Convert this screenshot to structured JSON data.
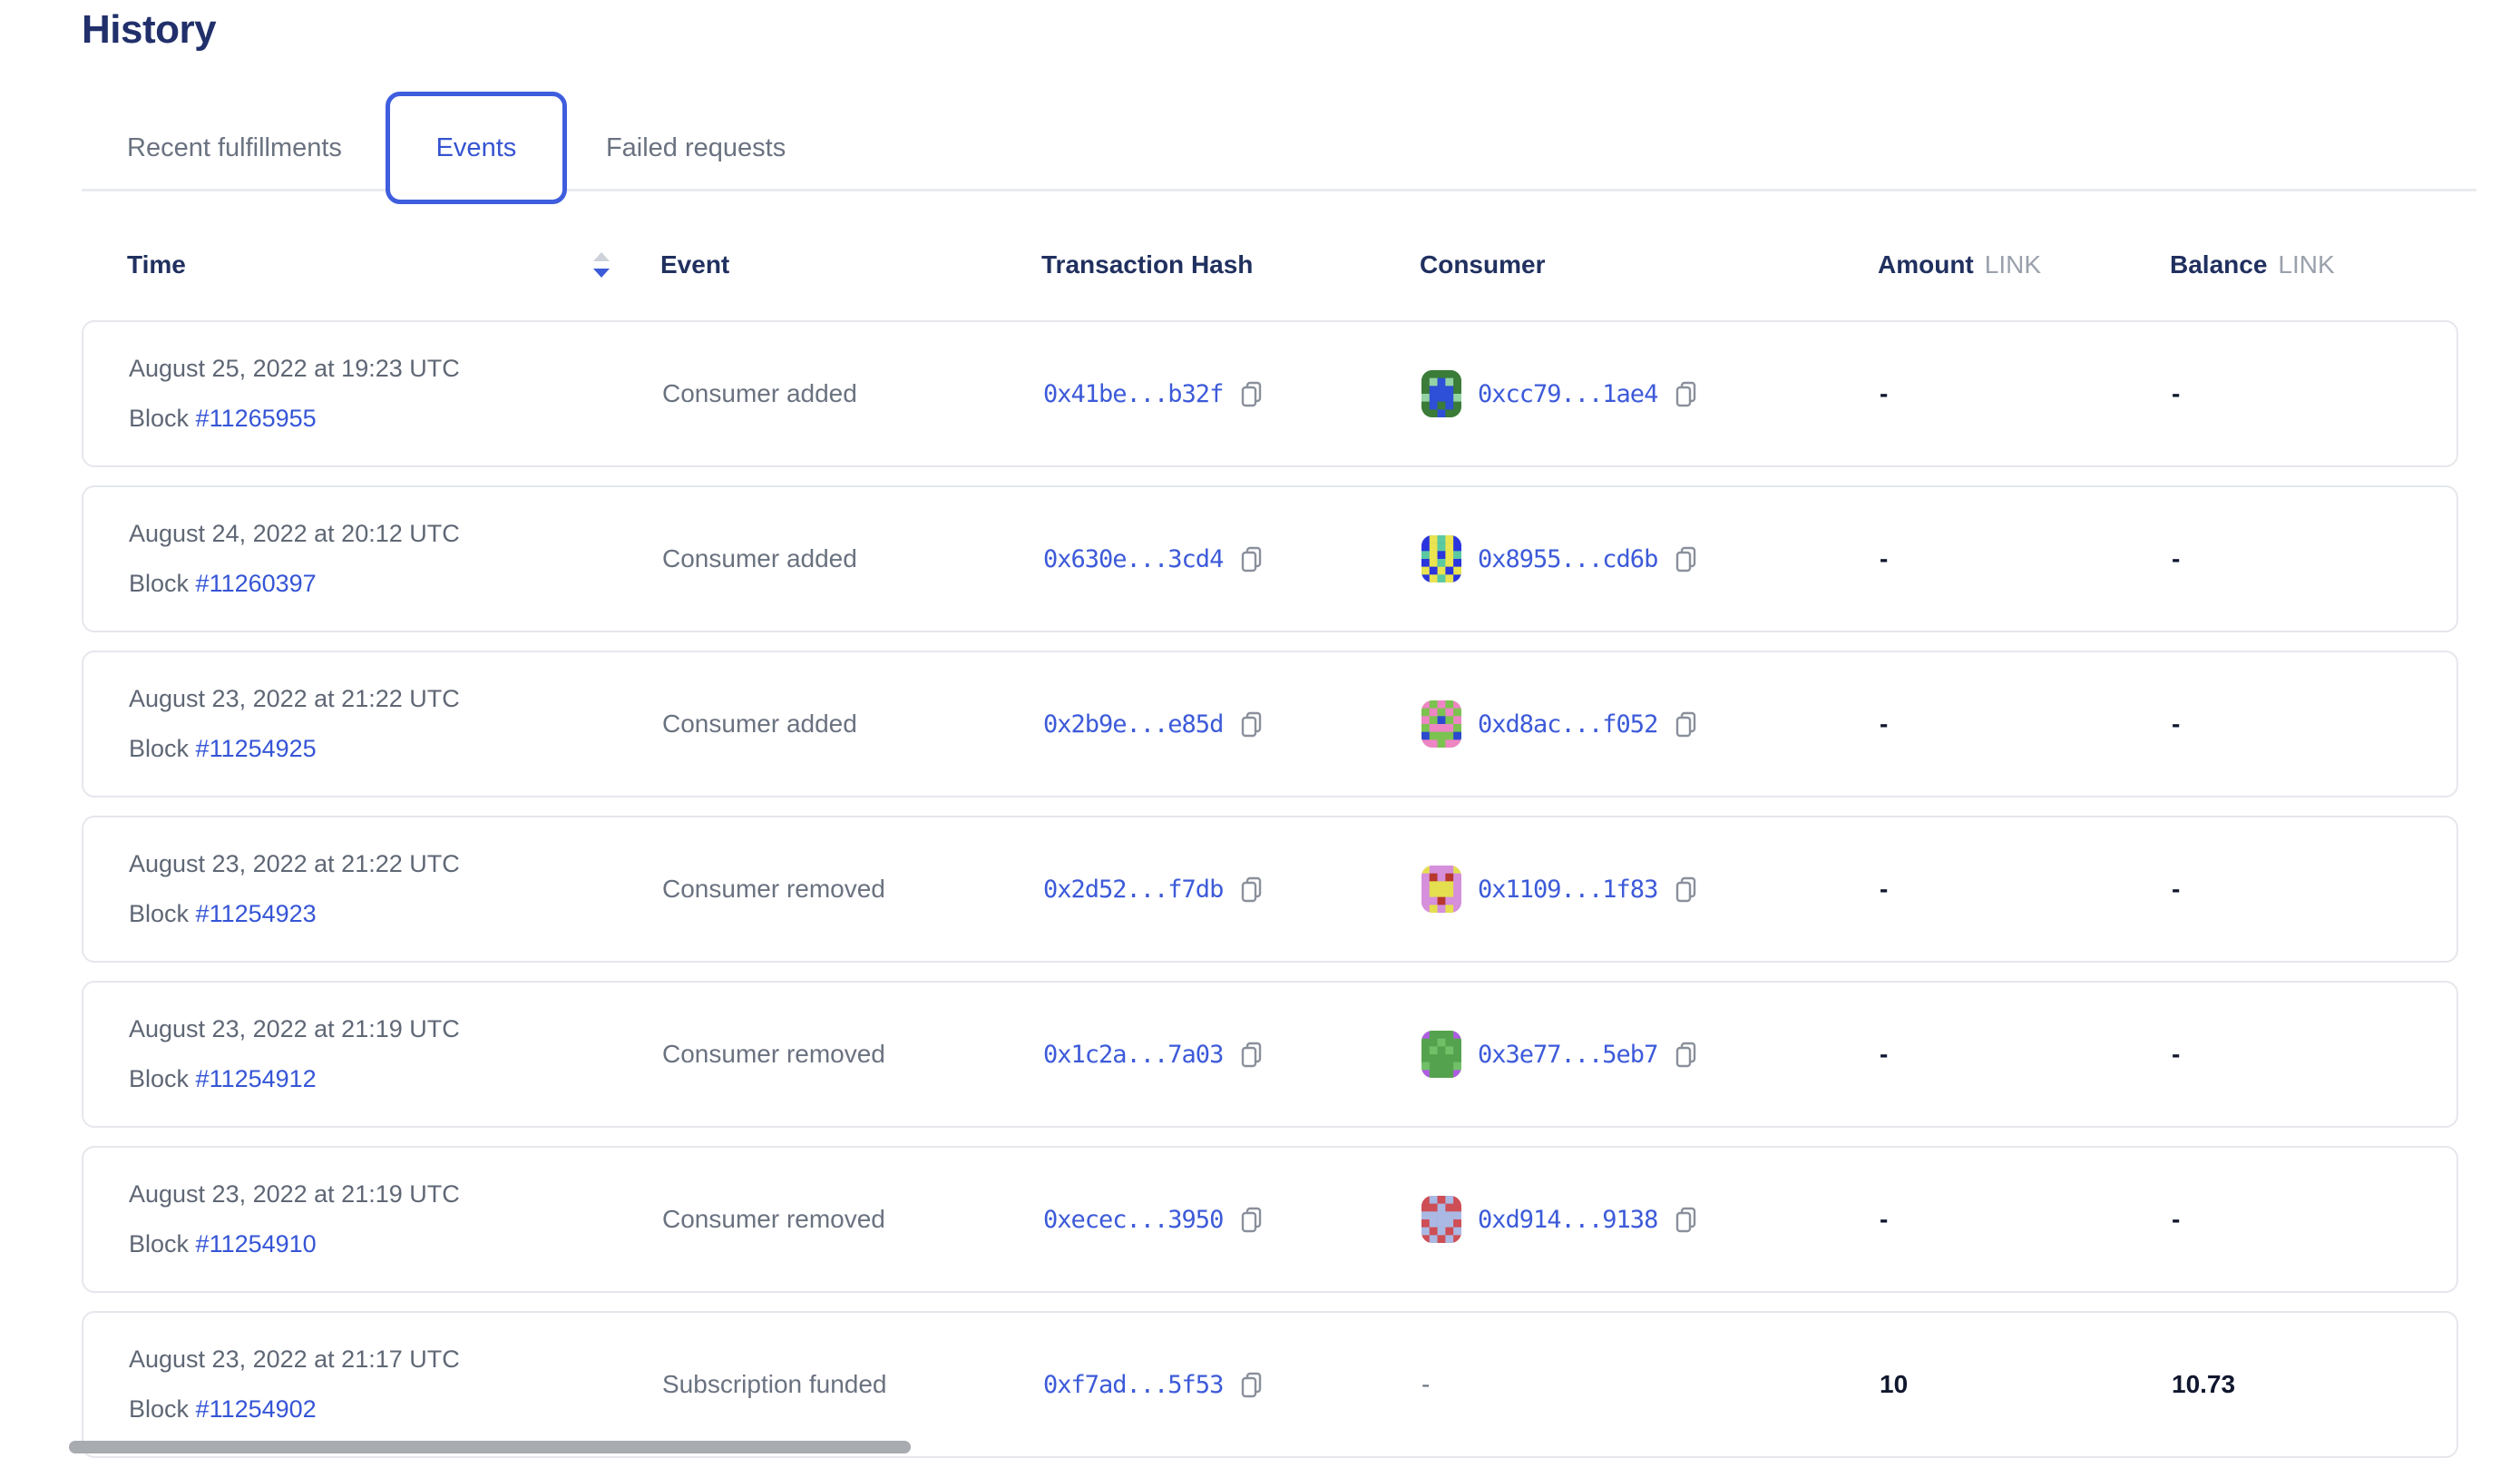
{
  "page": {
    "title": "History"
  },
  "tabs": [
    {
      "label": "Recent fulfillments",
      "active": false
    },
    {
      "label": "Events",
      "active": true
    },
    {
      "label": "Failed requests",
      "active": false
    }
  ],
  "colors": {
    "accent_blue": "#375bd2",
    "navy_heading": "#21306b",
    "header_text": "#20305f",
    "gray_text": "#6a7280",
    "link_blue": "#3555d6",
    "hash_blue": "#3c5ad9",
    "card_border": "#e5e7ec",
    "unit_gray": "#9aa1ac",
    "value_dark": "#10172e",
    "active_tab_border": "#3e5ede"
  },
  "icons": {
    "sort": "sort-descending-icon",
    "copy": "copy-icon"
  },
  "table": {
    "headers": {
      "time": "Time",
      "event": "Event",
      "hash": "Transaction Hash",
      "consumer": "Consumer",
      "amount": "Amount",
      "balance": "Balance",
      "unit": "LINK"
    },
    "rows": [
      {
        "date": "August 25, 2022 at 19:23 UTC",
        "block_label": "Block",
        "block": "#11265955",
        "event": "Consumer added",
        "tx": "0x41be...b32f",
        "consumer": "0xcc79...1ae4",
        "avatar": {
          "palette": [
            "#3a7c38",
            "#2e4fd7",
            "#93d3a4"
          ],
          "grid": [
            "00000",
            "02120",
            "01110",
            "21112",
            "01010",
            "00100"
          ]
        },
        "amount": "-",
        "balance": "-"
      },
      {
        "date": "August 24, 2022 at 20:12 UTC",
        "block_label": "Block",
        "block": "#11260397",
        "event": "Consumer added",
        "tx": "0x630e...3cd4",
        "consumer": "0x8955...cd6b",
        "avatar": {
          "palette": [
            "#2a35dd",
            "#e9e44f",
            "#5bc9a2"
          ],
          "grid": [
            "01210",
            "01210",
            "21012",
            "01210",
            "10101",
            "01210"
          ]
        },
        "amount": "-",
        "balance": "-"
      },
      {
        "date": "August 23, 2022 at 21:22 UTC",
        "block_label": "Block",
        "block": "#11254925",
        "event": "Consumer added",
        "tx": "0x2b9e...e85d",
        "consumer": "0xd8ac...f052",
        "avatar": {
          "palette": [
            "#7cc250",
            "#ee85c4",
            "#2c49cf"
          ],
          "grid": [
            "10101",
            "01010",
            "10201",
            "01110",
            "20002",
            "11011"
          ]
        },
        "amount": "-",
        "balance": "-"
      },
      {
        "date": "August 23, 2022 at 21:22 UTC",
        "block_label": "Block",
        "block": "#11254923",
        "event": "Consumer removed",
        "tx": "0x2d52...f7db",
        "consumer": "0x1109...1f83",
        "avatar": {
          "palette": [
            "#d58fdb",
            "#e4df4e",
            "#b7382d"
          ],
          "grid": [
            "10001",
            "02020",
            "01110",
            "01110",
            "00200",
            "01010"
          ]
        },
        "amount": "-",
        "balance": "-"
      },
      {
        "date": "August 23, 2022 at 21:19 UTC",
        "block_label": "Block",
        "block": "#11254912",
        "event": "Consumer removed",
        "tx": "0x1c2a...7a03",
        "consumer": "0x3e77...5eb7",
        "avatar": {
          "palette": [
            "#55a24e",
            "#ae5ce3",
            "#71c068"
          ],
          "grid": [
            "10001",
            "00200",
            "02020",
            "00000",
            "20002",
            "10001"
          ]
        },
        "amount": "-",
        "balance": "-"
      },
      {
        "date": "August 23, 2022 at 21:19 UTC",
        "block_label": "Block",
        "block": "#11254910",
        "event": "Consumer removed",
        "tx": "0xecec...3950",
        "consumer": "0xd914...9138",
        "avatar": {
          "palette": [
            "#ce4e56",
            "#a9b9e4"
          ],
          "grid": [
            "01010",
            "00100",
            "11111",
            "01110",
            "10101",
            "01010"
          ]
        },
        "amount": "-",
        "balance": "-"
      },
      {
        "date": "August 23, 2022 at 21:17 UTC",
        "block_label": "Block",
        "block": "#11254902",
        "event": "Subscription funded",
        "tx": "0xf7ad...5f53",
        "consumer": "-",
        "avatar": null,
        "amount": "10",
        "balance": "10.73"
      }
    ]
  }
}
